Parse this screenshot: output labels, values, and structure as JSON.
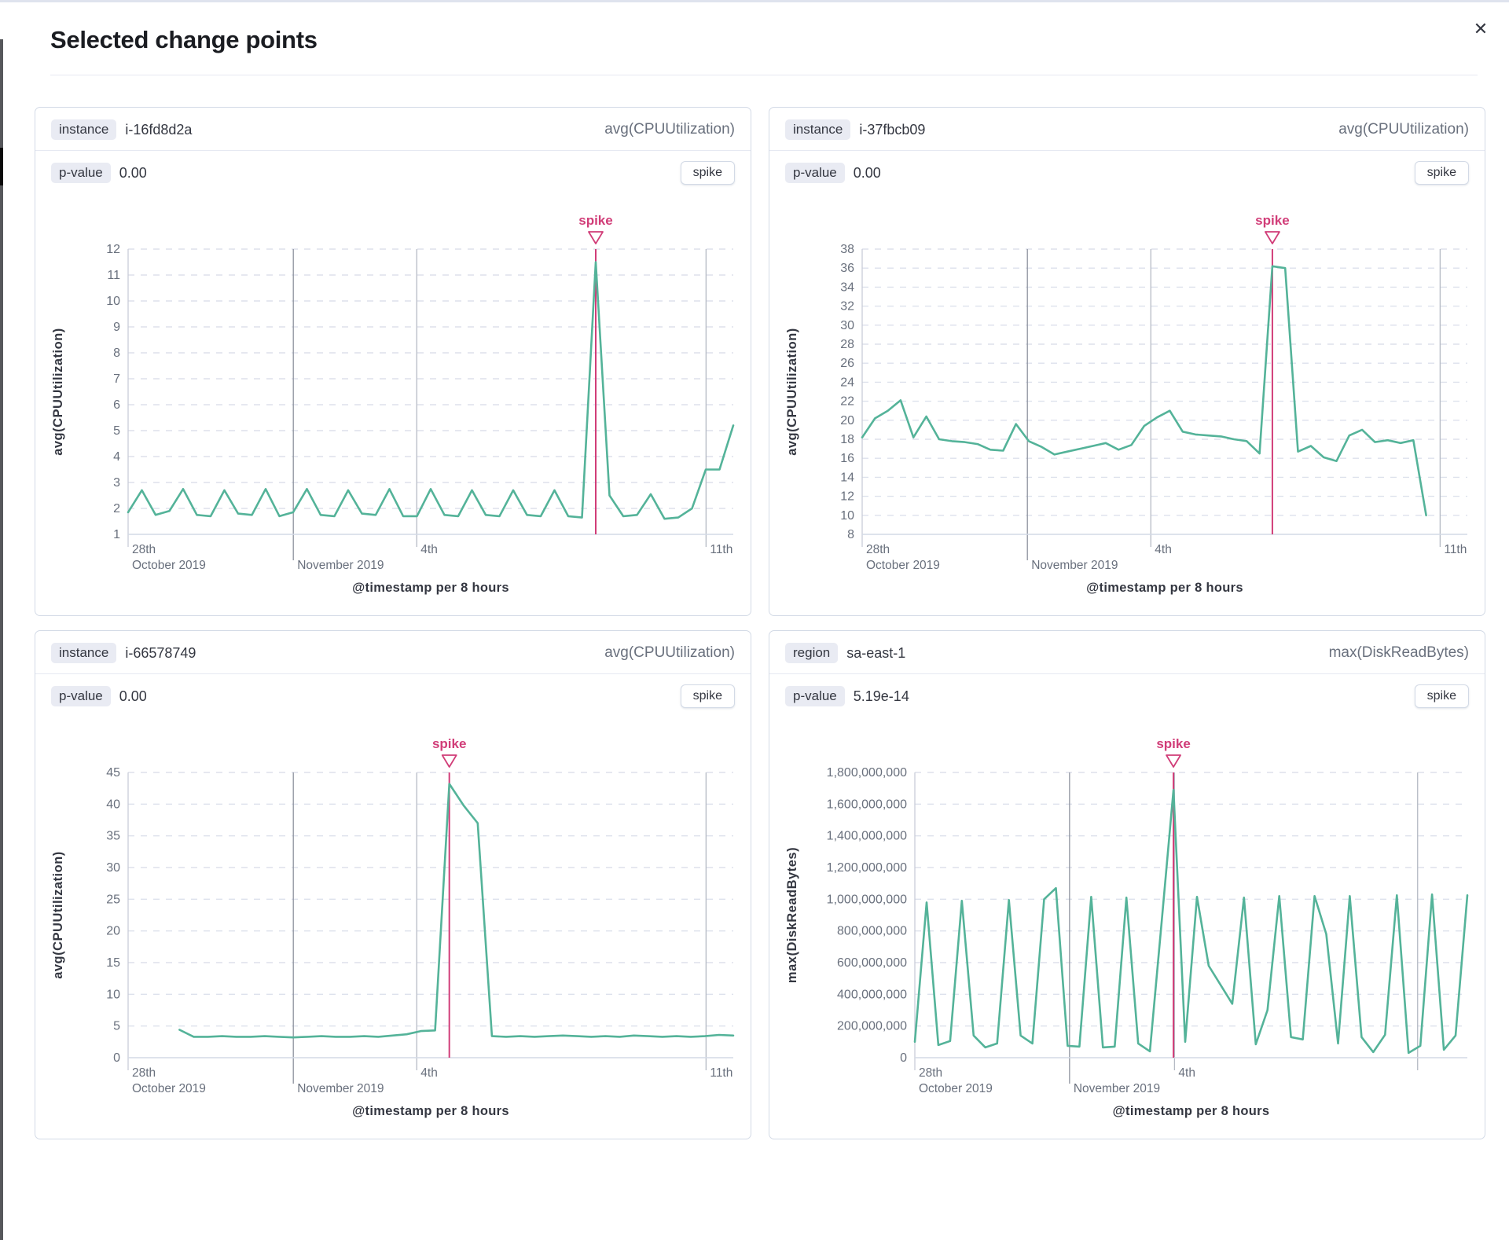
{
  "modal": {
    "title": "Selected change points",
    "close_icon": "✕"
  },
  "cards": [
    {
      "field_label": "instance",
      "field_value": "i-16fd8d2a",
      "metric": "avg(CPUUtilization)",
      "p_label": "p-value",
      "p_value": "0.00",
      "action_label": "spike"
    },
    {
      "field_label": "instance",
      "field_value": "i-37fbcb09",
      "metric": "avg(CPUUtilization)",
      "p_label": "p-value",
      "p_value": "0.00",
      "action_label": "spike"
    },
    {
      "field_label": "instance",
      "field_value": "i-66578749",
      "metric": "avg(CPUUtilization)",
      "p_label": "p-value",
      "p_value": "0.00",
      "action_label": "spike"
    },
    {
      "field_label": "region",
      "field_value": "sa-east-1",
      "metric": "max(DiskReadBytes)",
      "p_label": "p-value",
      "p_value": "5.19e-14",
      "action_label": "spike"
    }
  ],
  "colors": {
    "series": "#54b399",
    "spike": "#d13d78",
    "grid": "#dde1ec",
    "axis": "#d3dae6",
    "tick_label": "#69707d",
    "axis_title": "#343741",
    "month_line": "#8e939f",
    "day_line": "#b5bac4",
    "start_line": "#c9cdd8"
  },
  "chart_data": [
    {
      "type": "line",
      "title": "instance i-16fd8d2a change point",
      "y_axis_title": "avg(CPUUtilization)",
      "x_axis_title": "@timestamp per 8 hours",
      "annotation_label": "spike",
      "ylim": [
        1,
        12
      ],
      "ytick_step": 1,
      "tick_format": "plain",
      "x_ticks": [
        {
          "f": 0.0,
          "top": "28th",
          "bottom": "October 2019",
          "style": "start"
        },
        {
          "f": 0.273,
          "top": "",
          "bottom": "November 2019",
          "style": "month"
        },
        {
          "f": 0.477,
          "top": "4th",
          "bottom": "",
          "style": "day"
        },
        {
          "f": 0.955,
          "top": "11th",
          "bottom": "",
          "style": "day"
        }
      ],
      "x_start": 0,
      "x_end": 1,
      "spike_index": 34,
      "values": [
        1.85,
        2.7,
        1.75,
        1.9,
        2.75,
        1.75,
        1.7,
        2.7,
        1.8,
        1.75,
        2.75,
        1.7,
        1.85,
        2.75,
        1.75,
        1.7,
        2.7,
        1.8,
        1.75,
        2.75,
        1.7,
        1.7,
        2.75,
        1.75,
        1.7,
        2.7,
        1.75,
        1.7,
        2.7,
        1.75,
        1.7,
        2.7,
        1.7,
        1.65,
        11.5,
        2.5,
        1.7,
        1.75,
        2.55,
        1.6,
        1.65,
        2.0,
        3.5,
        3.5,
        5.2
      ]
    },
    {
      "type": "line",
      "title": "instance i-37fbcb09 change point",
      "y_axis_title": "avg(CPUUtilization)",
      "x_axis_title": "@timestamp per 8 hours",
      "annotation_label": "spike",
      "ylim": [
        8,
        38
      ],
      "ytick_step": 2,
      "tick_format": "plain",
      "x_ticks": [
        {
          "f": 0.0,
          "top": "28th",
          "bottom": "October 2019",
          "style": "start"
        },
        {
          "f": 0.273,
          "top": "",
          "bottom": "November 2019",
          "style": "month"
        },
        {
          "f": 0.477,
          "top": "4th",
          "bottom": "",
          "style": "day"
        },
        {
          "f": 0.955,
          "top": "11th",
          "bottom": "",
          "style": "day"
        }
      ],
      "x_start": 0,
      "x_end": 0.932,
      "spike_index": 32,
      "values": [
        18.2,
        20.2,
        21.0,
        22.1,
        18.2,
        20.4,
        18.0,
        17.8,
        17.7,
        17.5,
        16.9,
        16.8,
        19.6,
        17.8,
        17.2,
        16.4,
        16.7,
        17.0,
        17.3,
        17.6,
        16.9,
        17.4,
        19.4,
        20.3,
        21.0,
        18.8,
        18.5,
        18.4,
        18.3,
        18.0,
        17.8,
        16.5,
        36.2,
        36.0,
        16.7,
        17.3,
        16.1,
        15.7,
        18.4,
        19.0,
        17.7,
        17.9,
        17.6,
        17.9,
        10.0
      ]
    },
    {
      "type": "line",
      "title": "instance i-66578749 change point",
      "y_axis_title": "avg(CPUUtilization)",
      "x_axis_title": "@timestamp per 8 hours",
      "annotation_label": "spike",
      "ylim": [
        0,
        45
      ],
      "ytick_step": 5,
      "tick_format": "plain",
      "x_ticks": [
        {
          "f": 0.0,
          "top": "28th",
          "bottom": "October 2019",
          "style": "start"
        },
        {
          "f": 0.273,
          "top": "",
          "bottom": "November 2019",
          "style": "month"
        },
        {
          "f": 0.477,
          "top": "4th",
          "bottom": "",
          "style": "day"
        },
        {
          "f": 0.955,
          "top": "11th",
          "bottom": "",
          "style": "day"
        }
      ],
      "x_start": 0.085,
      "x_end": 1,
      "spike_index": 19,
      "values": [
        4.4,
        3.3,
        3.3,
        3.4,
        3.3,
        3.3,
        3.4,
        3.3,
        3.2,
        3.3,
        3.4,
        3.3,
        3.3,
        3.4,
        3.3,
        3.5,
        3.7,
        4.2,
        4.3,
        43.2,
        39.8,
        37.0,
        3.4,
        3.3,
        3.4,
        3.3,
        3.4,
        3.5,
        3.4,
        3.3,
        3.4,
        3.3,
        3.5,
        3.4,
        3.3,
        3.4,
        3.3,
        3.4,
        3.6,
        3.5
      ]
    },
    {
      "type": "line",
      "title": "region sa-east-1 change point",
      "y_axis_title": "max(DiskReadBytes)",
      "x_axis_title": "@timestamp per 8 hours",
      "annotation_label": "spike",
      "ylim": [
        0,
        1800000000
      ],
      "ytick_step": 200000000,
      "tick_format": "comma",
      "x_ticks": [
        {
          "f": 0.0,
          "top": "28th",
          "bottom": "October 2019",
          "style": "start"
        },
        {
          "f": 0.28,
          "top": "",
          "bottom": "November 2019",
          "style": "month"
        },
        {
          "f": 0.47,
          "top": "4th",
          "bottom": "",
          "style": "day"
        },
        {
          "f": 0.91,
          "top": "",
          "bottom": "",
          "style": "day"
        }
      ],
      "x_start": 0,
      "x_end": 1,
      "spike_index": 22,
      "values": [
        100000000,
        980000000,
        80000000,
        105000000,
        990000000,
        140000000,
        65000000,
        90000000,
        995000000,
        140000000,
        90000000,
        1000000000,
        1070000000,
        75000000,
        70000000,
        1015000000,
        65000000,
        70000000,
        1010000000,
        90000000,
        40000000,
        860000000,
        1690000000,
        100000000,
        1015000000,
        580000000,
        460000000,
        340000000,
        1010000000,
        85000000,
        300000000,
        1020000000,
        130000000,
        115000000,
        1020000000,
        780000000,
        90000000,
        1020000000,
        130000000,
        35000000,
        145000000,
        1025000000,
        30000000,
        75000000,
        1030000000,
        50000000,
        140000000,
        1025000000
      ]
    }
  ]
}
